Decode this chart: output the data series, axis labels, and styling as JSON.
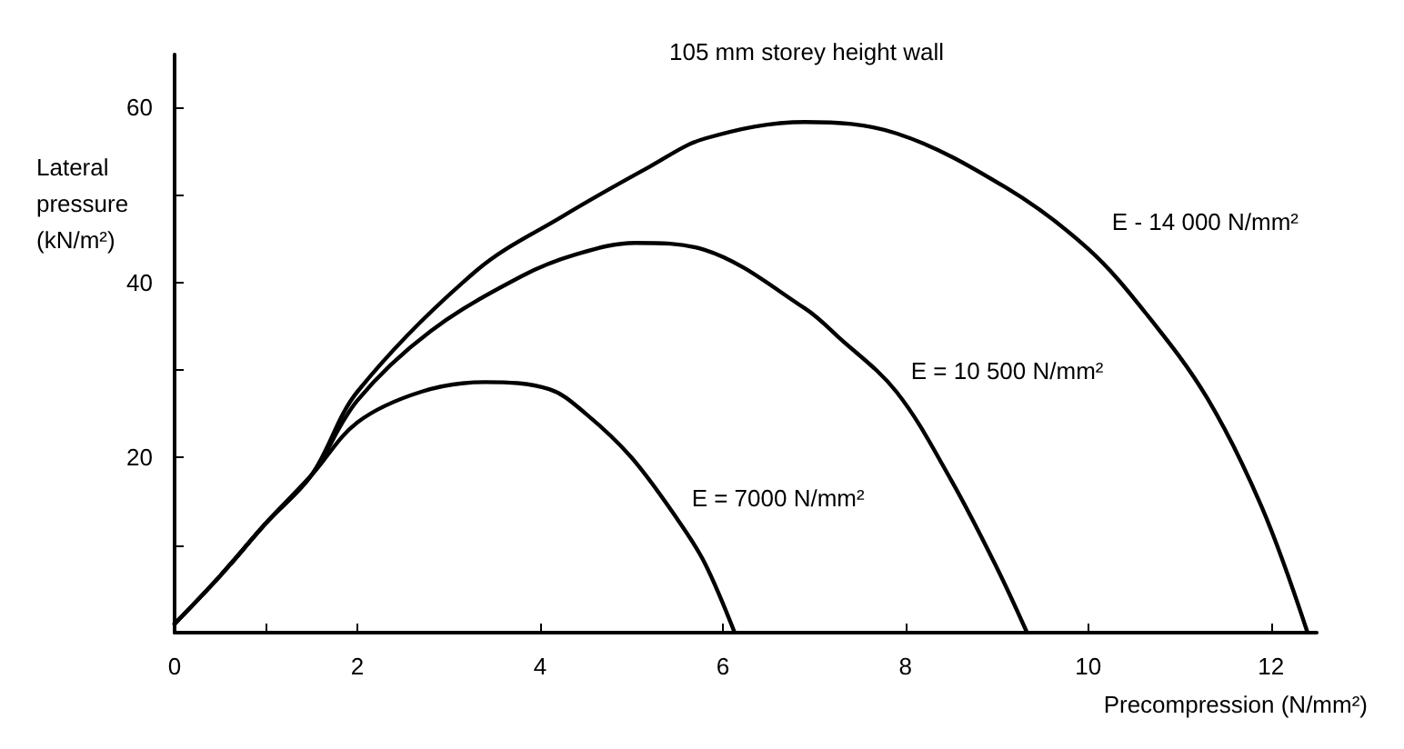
{
  "chart_data": {
    "type": "line",
    "title": "105 mm storey height wall",
    "xlabel": "Precompression (N/mm²)",
    "ylabel": "Lateral\npressure\n(kN/m²)",
    "series": [
      {
        "color": "#000000",
        "x": [
          0,
          0.5,
          1,
          1.5,
          2.0,
          2.7,
          3.4,
          4.1,
          4.5,
          5.0,
          5.5,
          5.8,
          6.13
        ],
        "values": [
          1,
          6.5,
          12.5,
          18,
          24,
          27.5,
          28.6,
          27.8,
          25,
          20,
          13,
          8,
          0
        ]
      },
      {
        "color": "#000000",
        "x": [
          0,
          0.5,
          1,
          1.5,
          2.0,
          2.8,
          3.8,
          4.4,
          5.04,
          5.8,
          6.9,
          7.26,
          7.9,
          8.5,
          9.0,
          9.33
        ],
        "values": [
          1,
          6.5,
          12.5,
          18,
          26.5,
          34.4,
          40.7,
          43.2,
          44.5,
          43.7,
          37,
          33.8,
          27.5,
          17.4,
          7.4,
          0
        ]
      },
      {
        "color": "#000000",
        "x": [
          0,
          0.5,
          1,
          1.5,
          2.0,
          3.3,
          4.24,
          5.2,
          5.8,
          6.9,
          7.9,
          9.1,
          10.0,
          10.65,
          11.3,
          11.9,
          12.4
        ],
        "values": [
          1,
          6.5,
          12.5,
          18,
          27.5,
          41.3,
          47.5,
          53.2,
          56.4,
          58.3,
          57,
          50.8,
          43.8,
          36.2,
          26.8,
          14.3,
          0
        ]
      }
    ],
    "annotations": [
      {
        "text": "E = 7000 N/mm²",
        "x": 5.5,
        "y": 13
      },
      {
        "text": "E = 10 500 N/mm²",
        "x": 7.9,
        "y": 27.5
      },
      {
        "text": "E - 14 000 N/mm²",
        "x": 10.1,
        "y": 44.5
      }
    ],
    "xlim": [
      0,
      12.5
    ],
    "xticks": [
      0,
      {
        "value": 1,
        "label": null
      },
      2,
      4,
      6,
      8,
      10,
      12
    ],
    "ylim": [
      0,
      66
    ],
    "yticks": [
      {
        "value": 10,
        "label": null
      },
      20,
      {
        "value": 30,
        "label": null
      },
      40,
      {
        "value": 50,
        "label": null
      },
      60
    ],
    "grid": false,
    "marker": "none",
    "line_style": "solid"
  }
}
